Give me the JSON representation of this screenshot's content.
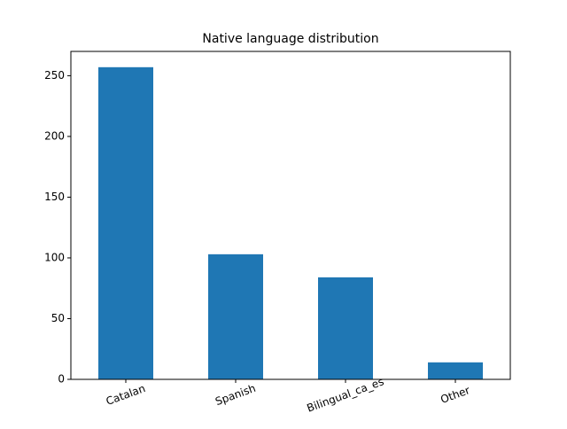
{
  "chart_data": {
    "type": "bar",
    "title": "Native language distribution",
    "categories": [
      "Catalan",
      "Spanish",
      "Bilingual_ca_es",
      "Other"
    ],
    "values": [
      257,
      103,
      84,
      14
    ],
    "color": "#1f77b4",
    "ylim": [
      0,
      270
    ],
    "yticks": [
      0,
      50,
      100,
      150,
      200,
      250
    ],
    "grid": false
  }
}
